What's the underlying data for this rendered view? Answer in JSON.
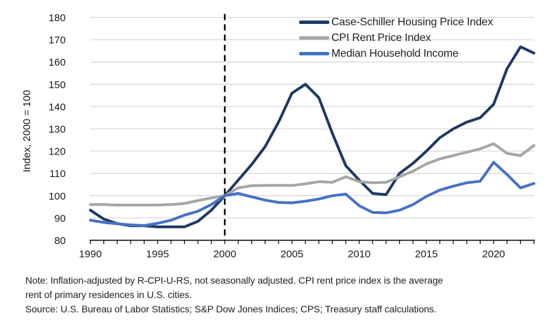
{
  "chart_data": {
    "type": "line",
    "title": "",
    "ylabel": "Index, 2000 = 100",
    "xlabel": "",
    "ylim": [
      80,
      180
    ],
    "xlim": [
      1990,
      2023
    ],
    "yticks": [
      80,
      90,
      100,
      110,
      120,
      130,
      140,
      150,
      160,
      170,
      180
    ],
    "xticks": [
      1990,
      1995,
      2000,
      2005,
      2010,
      2015,
      2020
    ],
    "grid": "horizontal",
    "gridline_color": "#d9d9d9",
    "axis_color": "#000000",
    "reference_line": {
      "x": 2000,
      "style": "dashed",
      "color": "#000000"
    },
    "legend_position": "top-right-inside",
    "x": [
      1990,
      1991,
      1992,
      1993,
      1994,
      1995,
      1996,
      1997,
      1998,
      1999,
      2000,
      2001,
      2002,
      2003,
      2004,
      2005,
      2006,
      2007,
      2008,
      2009,
      2010,
      2011,
      2012,
      2013,
      2014,
      2015,
      2016,
      2017,
      2018,
      2019,
      2020,
      2021,
      2022,
      2023
    ],
    "series": [
      {
        "name": "Case-Schiller Housing Price Index",
        "color": "#1f3864",
        "values": [
          93.5,
          89.5,
          87.5,
          86.5,
          86.5,
          86,
          86,
          86,
          88.5,
          93.5,
          100,
          107,
          114,
          122,
          133,
          146,
          150,
          144,
          128,
          113.5,
          107,
          101,
          100.5,
          110,
          114.5,
          120,
          126,
          130,
          133,
          135,
          141,
          157,
          166.8,
          164
        ]
      },
      {
        "name": "CPI Rent Price Index",
        "color": "#a6a6a6",
        "values": [
          96,
          96,
          95.8,
          95.8,
          95.8,
          95.8,
          96,
          96.5,
          97.8,
          99,
          100,
          103.5,
          104.5,
          104.6,
          104.6,
          104.6,
          105.3,
          106.3,
          106,
          108.5,
          106.3,
          105.8,
          106,
          108.5,
          111,
          114.3,
          116.5,
          118,
          119.5,
          121,
          123.3,
          119,
          118,
          122.5
        ]
      },
      {
        "name": "Median Household Income",
        "color": "#4472c4",
        "values": [
          89,
          88,
          87.4,
          86.9,
          86.6,
          87.6,
          89,
          91.3,
          93,
          96,
          100,
          101,
          99.5,
          98,
          97,
          96.8,
          97.5,
          98.5,
          100,
          100.7,
          95.5,
          92.5,
          92.3,
          93.5,
          96,
          99.7,
          102.5,
          104.3,
          105.8,
          106.5,
          115,
          109.5,
          103.5,
          105.5
        ]
      }
    ]
  },
  "notes": {
    "note_line1": "Note: Inflation-adjusted by R-CPI-U-RS, not seasonally adjusted. CPI rent price index is the average",
    "note_line2": "rent of primary residences in U.S. cities.",
    "source": "Source: U.S. Bureau of Labor Statistics; S&P Dow Jones Indices; CPS; Treasury staff calculations."
  }
}
